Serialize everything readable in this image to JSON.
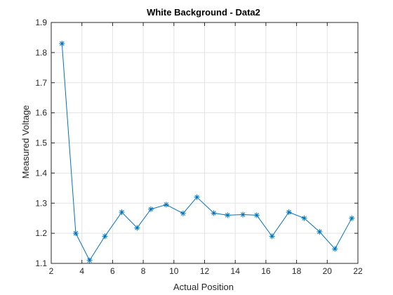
{
  "chart_data": {
    "type": "line",
    "title": "White Background - Data2",
    "xlabel": "Actual Position",
    "ylabel": "Measured Voltage",
    "xlim": [
      2,
      22
    ],
    "ylim": [
      1.1,
      1.9
    ],
    "xticks": [
      2,
      4,
      6,
      8,
      10,
      12,
      14,
      16,
      18,
      20,
      22
    ],
    "yticks": [
      1.1,
      1.2,
      1.3,
      1.4,
      1.5,
      1.6,
      1.7,
      1.8,
      1.9
    ],
    "xtick_labels": [
      "2",
      "4",
      "6",
      "8",
      "10",
      "12",
      "14",
      "16",
      "18",
      "20",
      "22"
    ],
    "ytick_labels": [
      "1.1",
      "1.2",
      "1.3",
      "1.4",
      "1.5",
      "1.6",
      "1.7",
      "1.8",
      "1.9"
    ],
    "grid": true,
    "marker": "asterisk",
    "color": "#0072BD",
    "series": [
      {
        "x": [
          2.7,
          3.6,
          4.5,
          5.5,
          6.6,
          7.6,
          8.5,
          9.5,
          10.6,
          11.5,
          12.6,
          13.5,
          14.5,
          15.4,
          16.4,
          17.5,
          18.5,
          19.5,
          20.5,
          21.6
        ],
        "y": [
          1.83,
          1.2,
          1.11,
          1.19,
          1.27,
          1.218,
          1.28,
          1.295,
          1.266,
          1.32,
          1.267,
          1.26,
          1.262,
          1.26,
          1.19,
          1.27,
          1.25,
          1.205,
          1.148,
          1.25
        ]
      }
    ]
  }
}
